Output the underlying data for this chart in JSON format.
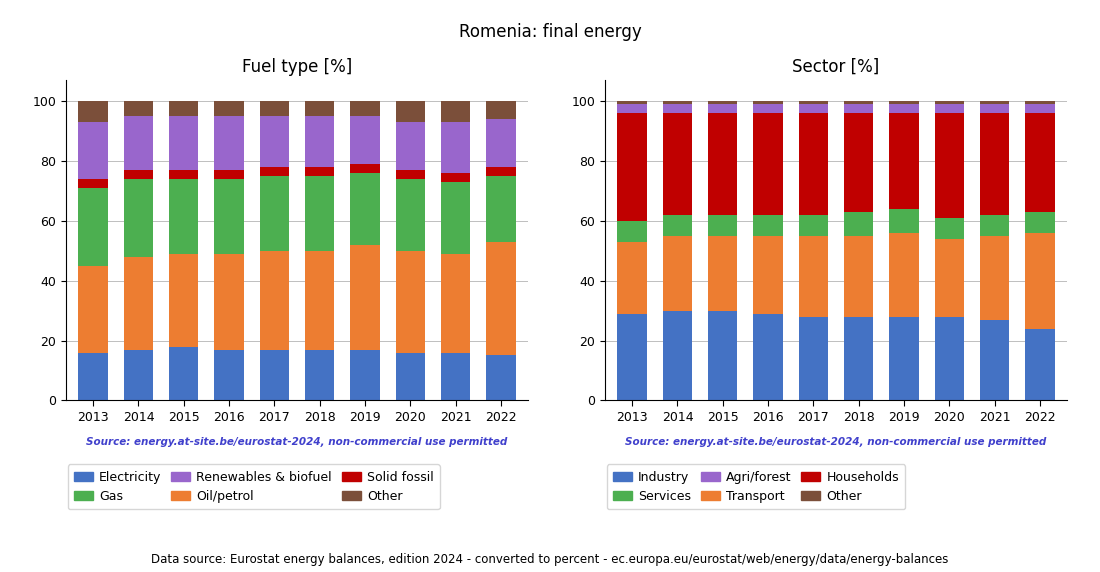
{
  "title": "Romenia: final energy",
  "years": [
    2013,
    2014,
    2015,
    2016,
    2017,
    2018,
    2019,
    2020,
    2021,
    2022
  ],
  "fuel": {
    "title": "Fuel type [%]",
    "Electricity": [
      16,
      17,
      18,
      17,
      17,
      17,
      17,
      16,
      16,
      15
    ],
    "Oil/petrol": [
      29,
      31,
      31,
      32,
      33,
      33,
      35,
      34,
      33,
      38
    ],
    "Gas": [
      26,
      26,
      25,
      25,
      25,
      25,
      24,
      24,
      24,
      22
    ],
    "Solid fossil": [
      3,
      3,
      3,
      3,
      3,
      3,
      3,
      3,
      3,
      3
    ],
    "Renewables & biofuel": [
      19,
      18,
      18,
      18,
      17,
      17,
      16,
      16,
      17,
      16
    ],
    "Other": [
      7,
      5,
      5,
      5,
      5,
      5,
      5,
      7,
      7,
      6
    ],
    "colors": [
      "#4472c4",
      "#ed7d31",
      "#4caf50",
      "#c00000",
      "#9966cc",
      "#7b4f3a"
    ]
  },
  "sector": {
    "title": "Sector [%]",
    "Industry": [
      29,
      30,
      30,
      29,
      28,
      28,
      28,
      28,
      27,
      24
    ],
    "Transport": [
      24,
      25,
      25,
      26,
      27,
      27,
      28,
      26,
      28,
      32
    ],
    "Services": [
      7,
      7,
      7,
      7,
      7,
      8,
      8,
      7,
      7,
      7
    ],
    "Households": [
      36,
      34,
      34,
      34,
      34,
      33,
      32,
      35,
      34,
      33
    ],
    "Agri/forest": [
      3,
      3,
      3,
      3,
      3,
      3,
      3,
      3,
      3,
      3
    ],
    "Other": [
      1,
      1,
      1,
      1,
      1,
      1,
      1,
      1,
      1,
      1
    ],
    "colors": [
      "#4472c4",
      "#ed7d31",
      "#4caf50",
      "#c00000",
      "#9966cc",
      "#7b4f3a"
    ]
  },
  "source_text": "Source: energy.at-site.be/eurostat-2024, non-commercial use permitted",
  "footer_text": "Data source: Eurostat energy balances, edition 2024 - converted to percent - ec.europa.eu/eurostat/web/energy/data/energy-balances",
  "source_color": "#4040cc",
  "fuel_legend_keys": [
    "Electricity",
    "Gas",
    "Renewables & biofuel",
    "Oil/petrol",
    "Solid fossil",
    "Other"
  ],
  "fuel_legend_colors": [
    "#4472c4",
    "#4caf50",
    "#9966cc",
    "#ed7d31",
    "#c00000",
    "#7b4f3a"
  ],
  "sector_legend_keys": [
    "Industry",
    "Services",
    "Agri/forest",
    "Transport",
    "Households",
    "Other"
  ],
  "sector_legend_colors": [
    "#4472c4",
    "#4caf50",
    "#9966cc",
    "#ed7d31",
    "#c00000",
    "#7b4f3a"
  ]
}
